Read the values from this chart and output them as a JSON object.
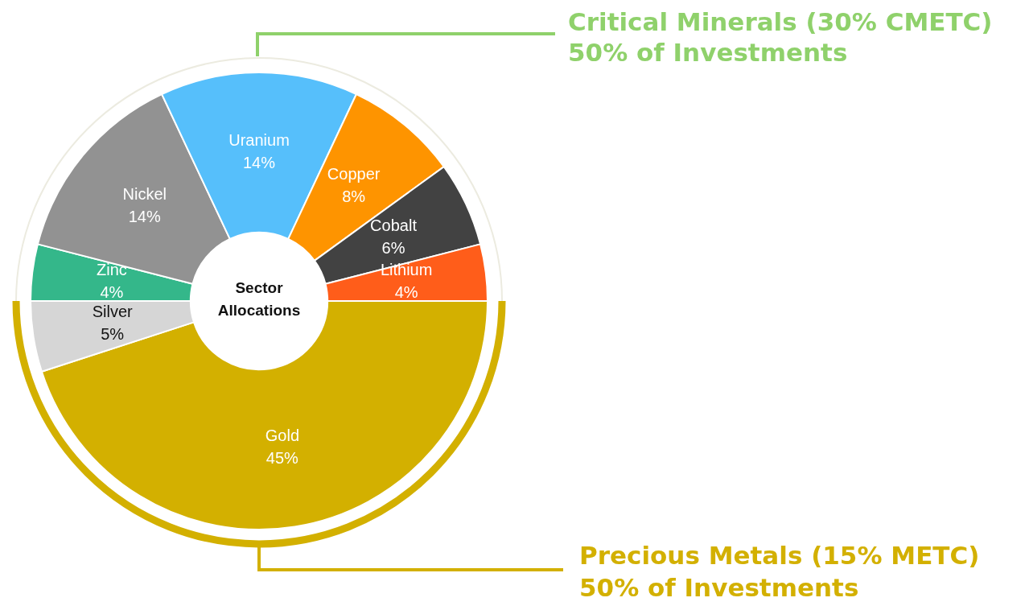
{
  "chart_data": {
    "type": "donut",
    "title": "Sector Allocations",
    "categories": [
      "Zinc",
      "Nickel",
      "Uranium",
      "Copper",
      "Cobalt",
      "Lithium",
      "Gold",
      "Silver"
    ],
    "values": [
      4,
      14,
      14,
      8,
      6,
      4,
      45,
      5
    ],
    "value_labels": [
      "4%",
      "14%",
      "14%",
      "8%",
      "6%",
      "4%",
      "45%",
      "5%"
    ],
    "colors": [
      "#34b78a",
      "#929292",
      "#56bffb",
      "#fe9400",
      "#424242",
      "#ff5d1a",
      "#d3b000",
      "#d6d6d6"
    ],
    "annotations": [
      "Critical Minerals (30% CMETC)\n50% of Investments",
      "Precious Metals (15% METC)\n50% of Investments"
    ],
    "legend": false
  }
}
